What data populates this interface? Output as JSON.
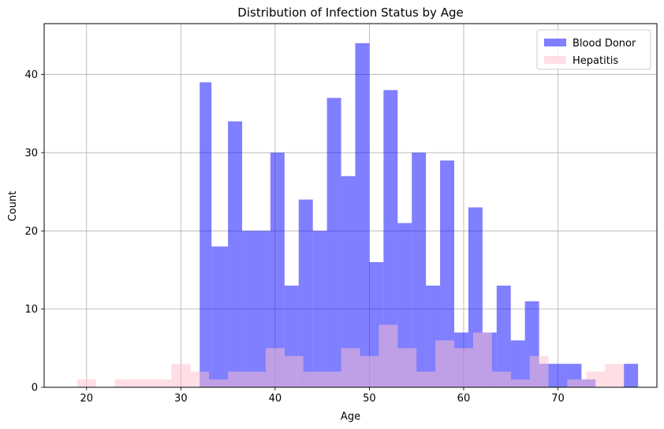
{
  "chart_data": {
    "type": "histogram",
    "title": "Distribution of Infection Status by Age",
    "xlabel": "Age",
    "ylabel": "Count",
    "xlim": [
      15.5,
      80.5
    ],
    "ylim": [
      0,
      46.5
    ],
    "xticks": [
      20,
      30,
      40,
      50,
      60,
      70
    ],
    "yticks": [
      0,
      10,
      20,
      30,
      40
    ],
    "grid": true,
    "legend_position": "top-right",
    "series": [
      {
        "name": "Blood Donor",
        "color": "#0000ff",
        "alpha": 0.5,
        "bins": [
          {
            "x0": 32.0,
            "x1": 33.25,
            "count": 39
          },
          {
            "x0": 33.25,
            "x1": 35.0,
            "count": 18
          },
          {
            "x0": 35.0,
            "x1": 36.5,
            "count": 34
          },
          {
            "x0": 36.5,
            "x1": 38.0,
            "count": 20
          },
          {
            "x0": 38.0,
            "x1": 39.5,
            "count": 20
          },
          {
            "x0": 39.5,
            "x1": 41.0,
            "count": 30
          },
          {
            "x0": 41.0,
            "x1": 42.5,
            "count": 13
          },
          {
            "x0": 42.5,
            "x1": 44.0,
            "count": 24
          },
          {
            "x0": 44.0,
            "x1": 45.5,
            "count": 20
          },
          {
            "x0": 45.5,
            "x1": 47.0,
            "count": 37
          },
          {
            "x0": 47.0,
            "x1": 48.5,
            "count": 27
          },
          {
            "x0": 48.5,
            "x1": 50.0,
            "count": 44
          },
          {
            "x0": 50.0,
            "x1": 51.5,
            "count": 16
          },
          {
            "x0": 51.5,
            "x1": 53.0,
            "count": 38
          },
          {
            "x0": 53.0,
            "x1": 54.5,
            "count": 21
          },
          {
            "x0": 54.5,
            "x1": 56.0,
            "count": 30
          },
          {
            "x0": 56.0,
            "x1": 57.5,
            "count": 13
          },
          {
            "x0": 57.5,
            "x1": 59.0,
            "count": 29
          },
          {
            "x0": 59.0,
            "x1": 60.5,
            "count": 7
          },
          {
            "x0": 60.5,
            "x1": 62.0,
            "count": 23
          },
          {
            "x0": 62.0,
            "x1": 63.5,
            "count": 7
          },
          {
            "x0": 63.5,
            "x1": 65.0,
            "count": 13
          },
          {
            "x0": 65.0,
            "x1": 66.5,
            "count": 6
          },
          {
            "x0": 66.5,
            "x1": 68.0,
            "count": 11
          },
          {
            "x0": 68.0,
            "x1": 69.5,
            "count": 3
          },
          {
            "x0": 69.5,
            "x1": 71.0,
            "count": 3
          },
          {
            "x0": 71.0,
            "x1": 72.5,
            "count": 3
          },
          {
            "x0": 72.5,
            "x1": 74.0,
            "count": 1
          },
          {
            "x0": 74.0,
            "x1": 75.5,
            "count": 0
          },
          {
            "x0": 75.5,
            "x1": 77.0,
            "count": 0
          },
          {
            "x0": 77.0,
            "x1": 78.5,
            "count": 3
          }
        ]
      },
      {
        "name": "Hepatitis",
        "color": "#ffc0cb",
        "alpha": 0.5,
        "bins": [
          {
            "x0": 19.0,
            "x1": 21.0,
            "count": 1
          },
          {
            "x0": 21.0,
            "x1": 23.0,
            "count": 0
          },
          {
            "x0": 23.0,
            "x1": 25.0,
            "count": 1
          },
          {
            "x0": 25.0,
            "x1": 27.0,
            "count": 1
          },
          {
            "x0": 27.0,
            "x1": 29.0,
            "count": 1
          },
          {
            "x0": 29.0,
            "x1": 31.0,
            "count": 3
          },
          {
            "x0": 31.0,
            "x1": 33.0,
            "count": 2
          },
          {
            "x0": 33.0,
            "x1": 35.0,
            "count": 1
          },
          {
            "x0": 35.0,
            "x1": 37.0,
            "count": 2
          },
          {
            "x0": 37.0,
            "x1": 39.0,
            "count": 2
          },
          {
            "x0": 39.0,
            "x1": 41.0,
            "count": 5
          },
          {
            "x0": 41.0,
            "x1": 43.0,
            "count": 4
          },
          {
            "x0": 43.0,
            "x1": 45.0,
            "count": 2
          },
          {
            "x0": 45.0,
            "x1": 47.0,
            "count": 2
          },
          {
            "x0": 47.0,
            "x1": 49.0,
            "count": 5
          },
          {
            "x0": 49.0,
            "x1": 51.0,
            "count": 4
          },
          {
            "x0": 51.0,
            "x1": 53.0,
            "count": 8
          },
          {
            "x0": 53.0,
            "x1": 55.0,
            "count": 5
          },
          {
            "x0": 55.0,
            "x1": 57.0,
            "count": 2
          },
          {
            "x0": 57.0,
            "x1": 59.0,
            "count": 6
          },
          {
            "x0": 59.0,
            "x1": 61.0,
            "count": 5
          },
          {
            "x0": 61.0,
            "x1": 63.0,
            "count": 7
          },
          {
            "x0": 63.0,
            "x1": 65.0,
            "count": 2
          },
          {
            "x0": 65.0,
            "x1": 67.0,
            "count": 1
          },
          {
            "x0": 67.0,
            "x1": 69.0,
            "count": 4
          },
          {
            "x0": 69.0,
            "x1": 71.0,
            "count": 0
          },
          {
            "x0": 71.0,
            "x1": 73.0,
            "count": 1
          },
          {
            "x0": 73.0,
            "x1": 75.0,
            "count": 2
          },
          {
            "x0": 75.0,
            "x1": 77.0,
            "count": 3
          }
        ]
      }
    ]
  }
}
